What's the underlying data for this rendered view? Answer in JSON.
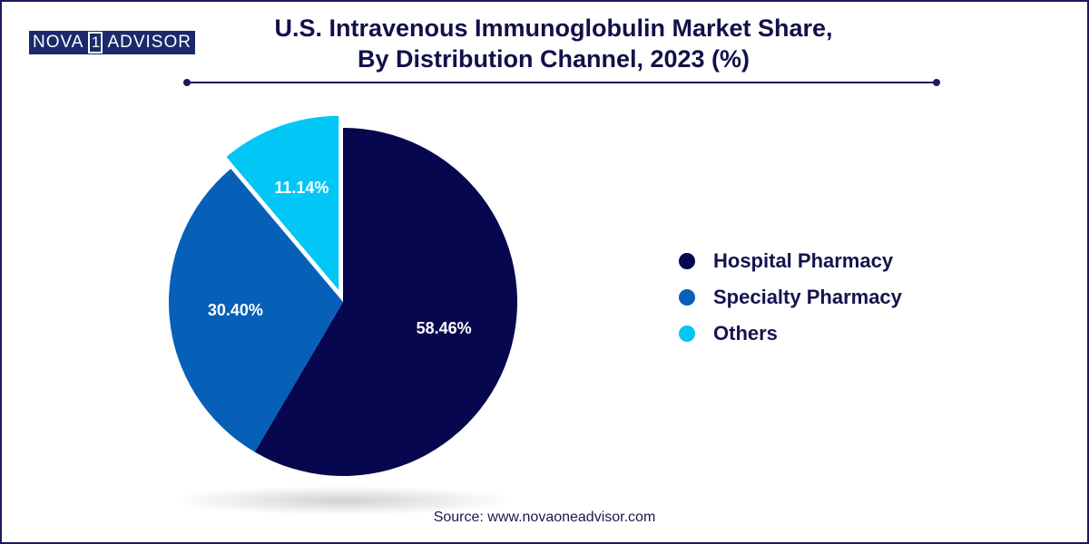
{
  "brand": {
    "word1": "NOVA",
    "one": "1",
    "word2": "ADVISOR"
  },
  "title_line1": "U.S. Intravenous Immunoglobulin Market Share,",
  "title_line2": "By Distribution Channel, 2023 (%)",
  "source": "Source: www.novaoneadvisor.com",
  "chart_data": {
    "type": "pie",
    "title": "U.S. Intravenous Immunoglobulin Market Share, By Distribution Channel, 2023 (%)",
    "slices": [
      {
        "name": "Hospital Pharmacy",
        "value": 58.46,
        "label": "58.46%",
        "color": "#07074f"
      },
      {
        "name": "Specialty Pharmacy",
        "value": 30.4,
        "label": "30.40%",
        "color": "#0660b8"
      },
      {
        "name": "Others",
        "value": 11.14,
        "label": "11.14%",
        "color": "#02c6f6"
      }
    ],
    "legend_position": "right"
  }
}
